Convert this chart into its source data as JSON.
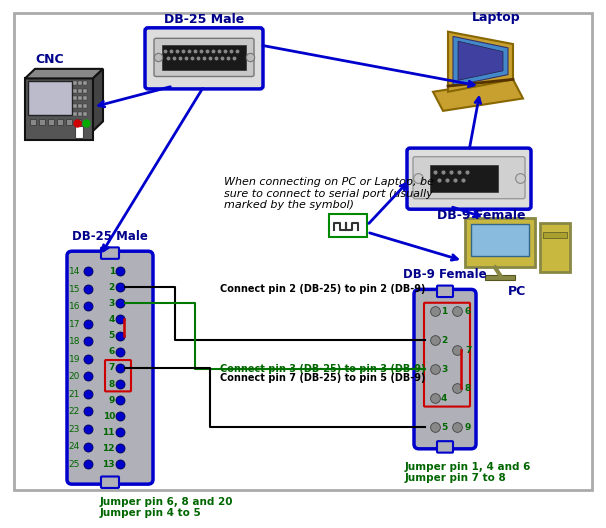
{
  "fig_bg": "#ffffff",
  "border_color": "#aaaaaa",
  "blue_border": "#0000cc",
  "blue_dark": "#00008B",
  "green_text": "#006600",
  "red_color": "#cc0000",
  "green_wire": "#007700",
  "black_wire": "#000000",
  "pin_fill_db25": "#0000cc",
  "pin_fill_db9": "#888888",
  "connector_bg": "#b0b0b8",
  "cnc_label": "CNC",
  "db25_male_label": "DB-25 Male",
  "db9_female_label": "DB-9 Female",
  "laptop_label": "Laptop",
  "pc_label": "PC",
  "db9_female_top_label": "DB-9 Female",
  "note_text": "When connecting on PC or Laptop, be\nsure to connect to serial port (usually\nmarked by the symbol)",
  "connect1": "Connect pin 2 (DB-25) to pin 2 (DB-9)",
  "connect2": "Connect pin 3 (DB-25) to pin 3 (DB-9)",
  "connect3": "Connect pin 7 (DB-25) to pin 5 (DB-9)",
  "jumper1": "Jumper pin 6, 8 and 20",
  "jumper2": "Jumper pin 4 to 5",
  "jumper3": "Jumper pin 1, 4 and 6",
  "jumper4": "Jumper pin 7 to 8"
}
